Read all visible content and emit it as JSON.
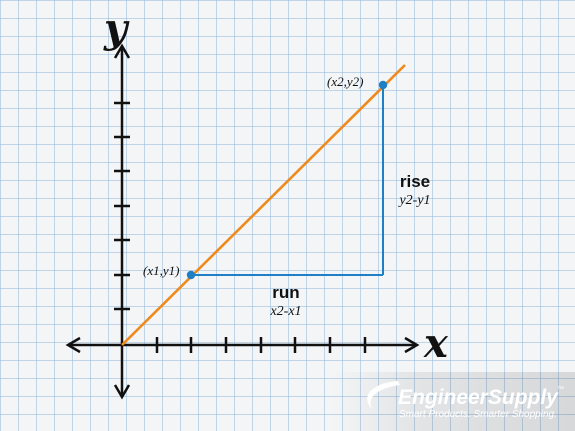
{
  "diagram": {
    "y_axis_letter": "y",
    "x_axis_letter": "x",
    "point1_label": "(x1,y1)",
    "point2_label": "(x2,y2)",
    "run_label": "run",
    "run_formula": "x2-x1",
    "rise_label": "rise",
    "rise_formula": "y2-y1"
  },
  "brand": {
    "name": "EngineerSupply",
    "trademark": "™",
    "tagline": "Smart Products. Smarter Shopping."
  },
  "colors": {
    "line": "#ef8a1d",
    "run_rise": "#1f7fc4",
    "point": "#1f7fc4",
    "axis": "#111111"
  }
}
